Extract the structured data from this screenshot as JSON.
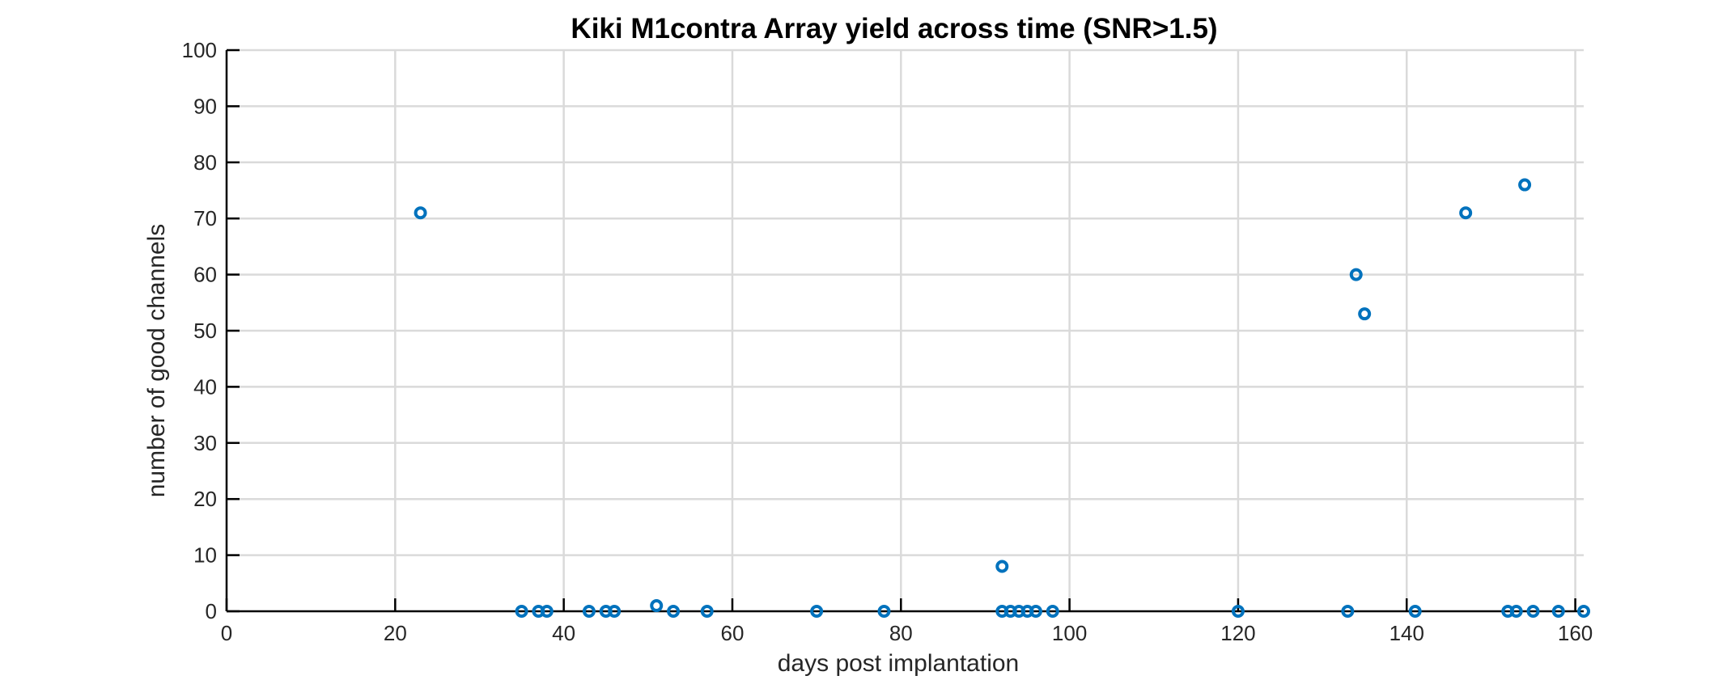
{
  "chart_data": {
    "type": "scatter",
    "title": "Kiki M1contra Array yield across time (SNR>1.5)",
    "xlabel": "days post implantation",
    "ylabel": "number of good channels",
    "xlim": [
      0,
      161
    ],
    "ylim": [
      0,
      100
    ],
    "xticks": [
      0,
      20,
      40,
      60,
      80,
      100,
      120,
      140,
      160
    ],
    "yticks": [
      0,
      10,
      20,
      30,
      40,
      50,
      60,
      70,
      80,
      90,
      100
    ],
    "grid": true,
    "marker": "open-circle",
    "series": [
      {
        "color": "#0072bd",
        "points": [
          {
            "x": 23,
            "y": 71
          },
          {
            "x": 35,
            "y": 0
          },
          {
            "x": 37,
            "y": 0
          },
          {
            "x": 38,
            "y": 0
          },
          {
            "x": 43,
            "y": 0
          },
          {
            "x": 45,
            "y": 0
          },
          {
            "x": 46,
            "y": 0
          },
          {
            "x": 51,
            "y": 1
          },
          {
            "x": 53,
            "y": 0
          },
          {
            "x": 57,
            "y": 0
          },
          {
            "x": 70,
            "y": 0
          },
          {
            "x": 78,
            "y": 0
          },
          {
            "x": 92,
            "y": 8
          },
          {
            "x": 92,
            "y": 0
          },
          {
            "x": 93,
            "y": 0
          },
          {
            "x": 94,
            "y": 0
          },
          {
            "x": 95,
            "y": 0
          },
          {
            "x": 96,
            "y": 0
          },
          {
            "x": 98,
            "y": 0
          },
          {
            "x": 120,
            "y": 0
          },
          {
            "x": 133,
            "y": 0
          },
          {
            "x": 134,
            "y": 60
          },
          {
            "x": 135,
            "y": 53
          },
          {
            "x": 141,
            "y": 0
          },
          {
            "x": 147,
            "y": 71
          },
          {
            "x": 152,
            "y": 0
          },
          {
            "x": 153,
            "y": 0
          },
          {
            "x": 154,
            "y": 76
          },
          {
            "x": 155,
            "y": 0
          },
          {
            "x": 158,
            "y": 0
          },
          {
            "x": 161,
            "y": 0
          }
        ]
      }
    ]
  }
}
